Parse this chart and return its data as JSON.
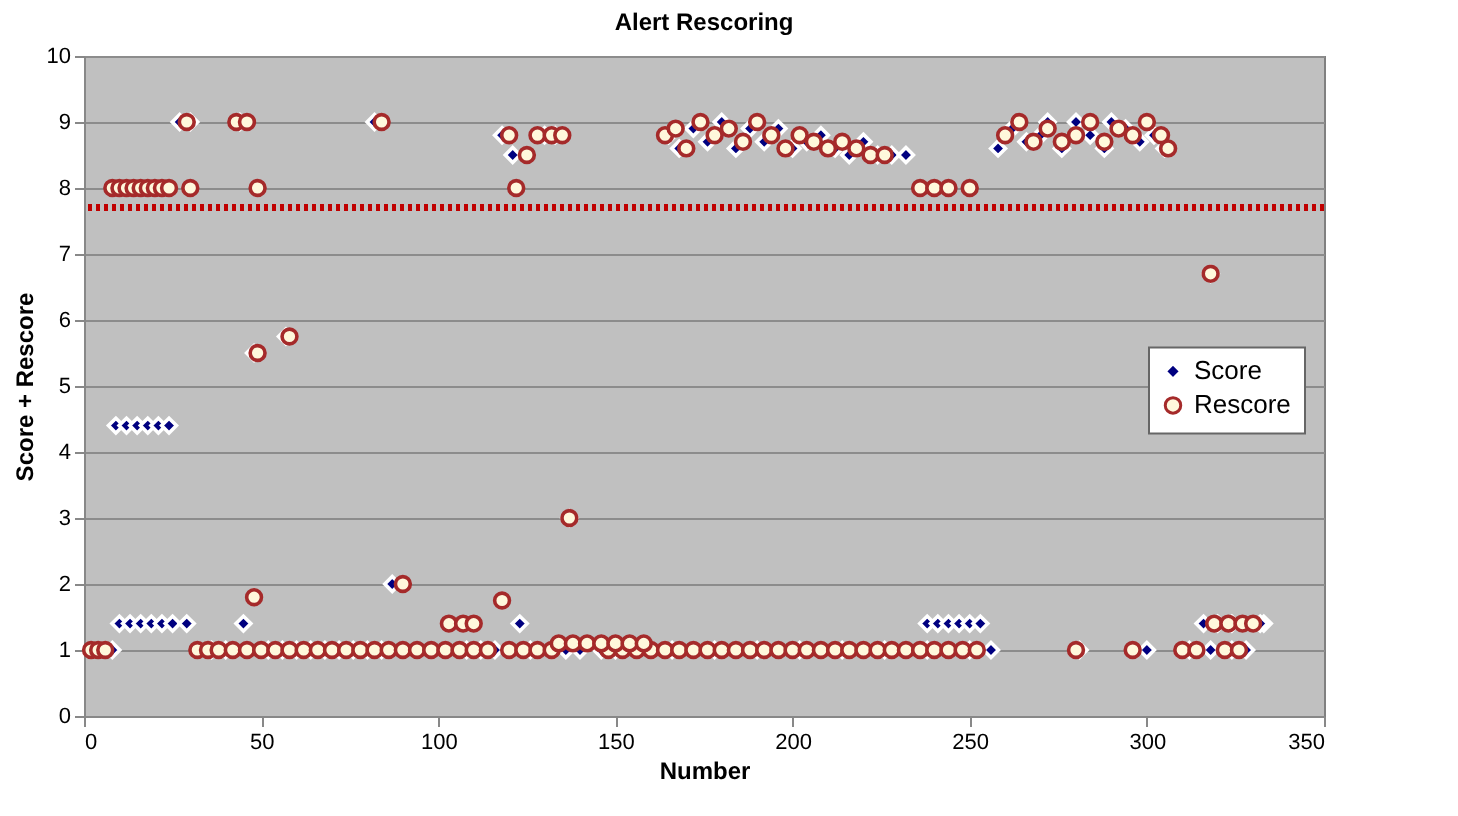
{
  "chart_data": {
    "type": "scatter",
    "title": "Alert Rescoring",
    "xlabel": "Number",
    "ylabel": "Score + Rescore",
    "xlim": [
      0,
      350
    ],
    "xticks": [
      0,
      50,
      100,
      150,
      200,
      250,
      300,
      350
    ],
    "ylim": [
      0,
      10
    ],
    "yticks": [
      0,
      1,
      2,
      3,
      4,
      5,
      6,
      7,
      8,
      9,
      10
    ],
    "grid": "y",
    "legend": "right",
    "ref_lines": [
      {
        "axis": "y",
        "value": 7.7,
        "color": "#c00000",
        "line_style": "dotted"
      }
    ],
    "series": [
      {
        "name": "Score",
        "color": "#000080",
        "marker": "diamond",
        "x": [
          8,
          36,
          40,
          52,
          56,
          60,
          64,
          68,
          72,
          76,
          80,
          84,
          108,
          112,
          116,
          126,
          136,
          140,
          146,
          150,
          166,
          178,
          190,
          202,
          214,
          226,
          238,
          250,
          256,
          281,
          300,
          312,
          318,
          324,
          328,
          10,
          13,
          16,
          19,
          22,
          25,
          29,
          45,
          123,
          238,
          241,
          244,
          247,
          250,
          253,
          316,
          320,
          324,
          333,
          332,
          9,
          12,
          15,
          18,
          21,
          24,
          27,
          30,
          44,
          82,
          272,
          280,
          290,
          118,
          121,
          130,
          133,
          165,
          168,
          172,
          176,
          180,
          184,
          188,
          192,
          196,
          200,
          204,
          208,
          212,
          216,
          220,
          224,
          228,
          232,
          258,
          262,
          266,
          270,
          276,
          284,
          288,
          294,
          298,
          302,
          305,
          48,
          57,
          87,
          137,
          318
        ],
        "values": [
          1,
          1,
          1,
          1,
          1,
          1,
          1,
          1,
          1,
          1,
          1,
          1,
          1,
          1,
          1,
          1,
          1,
          1,
          1,
          1,
          1,
          1,
          1,
          1,
          1,
          1,
          1,
          1,
          1,
          1,
          1,
          1,
          1,
          1,
          1,
          1.4,
          1.4,
          1.4,
          1.4,
          1.4,
          1.4,
          1.4,
          1.4,
          1.4,
          1.4,
          1.4,
          1.4,
          1.4,
          1.4,
          1.4,
          1.4,
          1.4,
          1.4,
          1.4,
          1.4,
          4.4,
          4.4,
          4.4,
          4.4,
          4.4,
          4.4,
          9,
          9,
          9,
          9,
          9,
          9,
          9,
          8.8,
          8.5,
          8.8,
          8.8,
          8.8,
          8.6,
          8.9,
          8.7,
          9,
          8.6,
          8.9,
          8.7,
          8.9,
          8.6,
          8.7,
          8.8,
          8.6,
          8.5,
          8.7,
          8.5,
          8.5,
          8.5,
          8.6,
          8.9,
          8.7,
          8.8,
          8.6,
          8.8,
          8.6,
          8.9,
          8.7,
          8.8,
          8.6,
          5.5,
          5.75,
          2,
          3,
          6.7
        ]
      },
      {
        "name": "Rescore",
        "color": "#a52a2a",
        "marker": "circle",
        "x": [
          2,
          4,
          6,
          32,
          35,
          38,
          42,
          46,
          50,
          54,
          58,
          62,
          66,
          70,
          74,
          78,
          82,
          86,
          90,
          94,
          98,
          102,
          106,
          110,
          114,
          120,
          124,
          128,
          132,
          148,
          152,
          156,
          160,
          164,
          168,
          172,
          176,
          180,
          184,
          188,
          192,
          196,
          200,
          204,
          208,
          212,
          216,
          220,
          224,
          228,
          232,
          236,
          240,
          244,
          248,
          252,
          280,
          296,
          310,
          314,
          322,
          326,
          134,
          138,
          142,
          146,
          150,
          154,
          158,
          103,
          107,
          110,
          118,
          48,
          319,
          323,
          327,
          330,
          8,
          10,
          12,
          14,
          16,
          18,
          20,
          22,
          24,
          30,
          49,
          122,
          236,
          240,
          244,
          250,
          29,
          43,
          46,
          84,
          120,
          125,
          128,
          132,
          135,
          164,
          167,
          170,
          174,
          178,
          182,
          186,
          190,
          194,
          198,
          202,
          206,
          210,
          214,
          218,
          222,
          226,
          260,
          264,
          268,
          272,
          276,
          280,
          284,
          288,
          292,
          296,
          300,
          304,
          306,
          49,
          58,
          90,
          137,
          318
        ],
        "values": [
          1,
          1,
          1,
          1,
          1,
          1,
          1,
          1,
          1,
          1,
          1,
          1,
          1,
          1,
          1,
          1,
          1,
          1,
          1,
          1,
          1,
          1,
          1,
          1,
          1,
          1,
          1,
          1,
          1,
          1,
          1,
          1,
          1,
          1,
          1,
          1,
          1,
          1,
          1,
          1,
          1,
          1,
          1,
          1,
          1,
          1,
          1,
          1,
          1,
          1,
          1,
          1,
          1,
          1,
          1,
          1,
          1,
          1,
          1,
          1,
          1,
          1,
          1.1,
          1.1,
          1.1,
          1.1,
          1.1,
          1.1,
          1.1,
          1.4,
          1.4,
          1.4,
          1.75,
          1.8,
          1.4,
          1.4,
          1.4,
          1.4,
          8,
          8,
          8,
          8,
          8,
          8,
          8,
          8,
          8,
          8,
          8,
          8,
          8,
          8,
          8,
          8,
          9,
          9,
          9,
          9,
          8.8,
          8.5,
          8.8,
          8.8,
          8.8,
          8.8,
          8.9,
          8.6,
          9,
          8.8,
          8.9,
          8.7,
          9,
          8.8,
          8.6,
          8.8,
          8.7,
          8.6,
          8.7,
          8.6,
          8.5,
          8.5,
          8.8,
          9,
          8.7,
          8.9,
          8.7,
          8.8,
          9,
          8.7,
          8.9,
          8.8,
          9,
          8.8,
          8.6,
          5.5,
          5.75,
          2,
          3,
          6.7
        ]
      }
    ]
  }
}
